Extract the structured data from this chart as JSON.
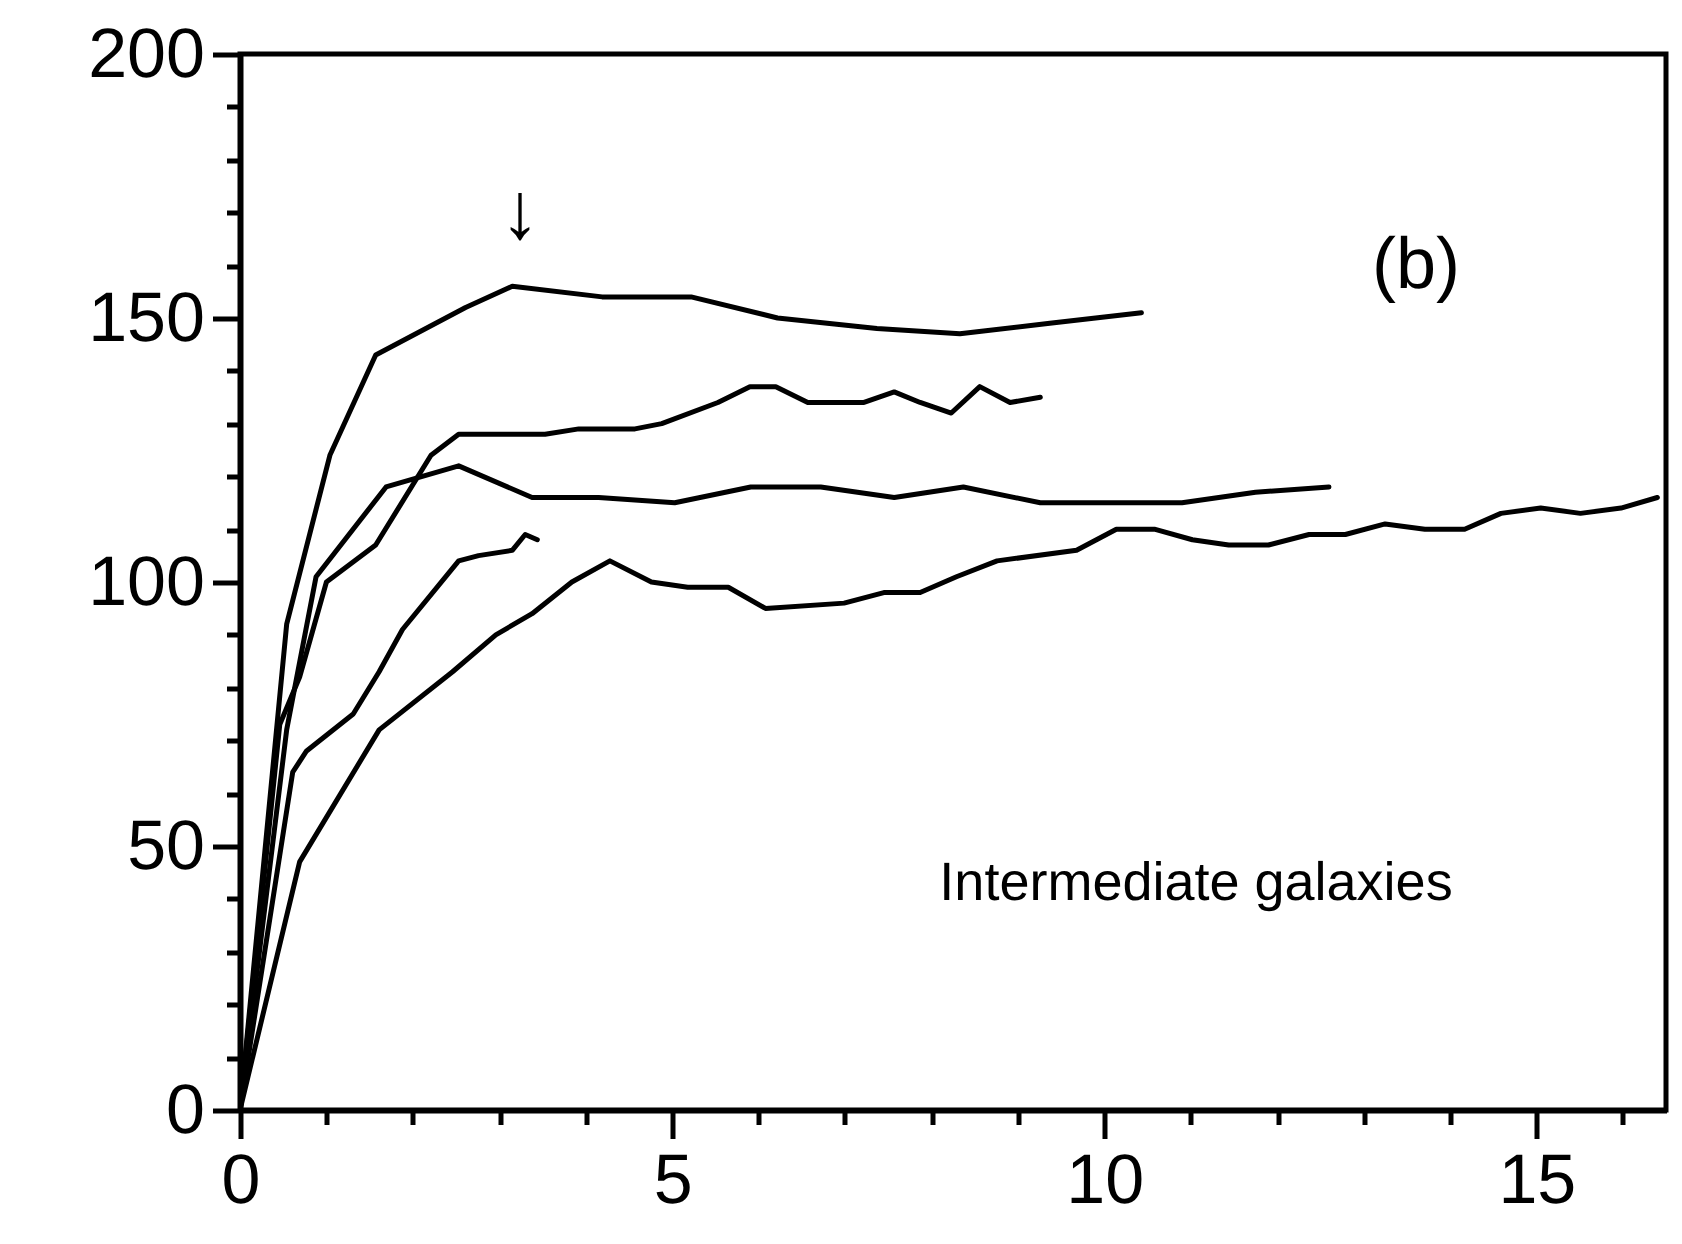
{
  "chart_data": {
    "type": "line",
    "xlim": [
      0,
      16.5
    ],
    "ylim": [
      0,
      200
    ],
    "xticks": [
      0,
      {
        "value": 1,
        "label": null
      },
      {
        "value": 2,
        "label": null
      },
      {
        "value": 3,
        "label": null
      },
      {
        "value": 4,
        "label": null
      },
      5,
      {
        "value": 6,
        "label": null
      },
      {
        "value": 7,
        "label": null
      },
      {
        "value": 8,
        "label": null
      },
      {
        "value": 9,
        "label": null
      },
      10,
      {
        "value": 11,
        "label": null
      },
      {
        "value": 12,
        "label": null
      },
      {
        "value": 13,
        "label": null
      },
      {
        "value": 14,
        "label": null
      },
      15,
      {
        "value": 16,
        "label": null
      }
    ],
    "yticks": [
      0,
      {
        "value": 10,
        "label": null
      },
      {
        "value": 20,
        "label": null
      },
      {
        "value": 30,
        "label": null
      },
      {
        "value": 40,
        "label": null
      },
      50,
      {
        "value": 60,
        "label": null
      },
      {
        "value": 70,
        "label": null
      },
      {
        "value": 80,
        "label": null
      },
      {
        "value": 90,
        "label": null
      },
      100,
      {
        "value": 110,
        "label": null
      },
      {
        "value": 120,
        "label": null
      },
      {
        "value": 130,
        "label": null
      },
      {
        "value": 140,
        "label": null
      },
      150,
      {
        "value": 160,
        "label": null
      },
      {
        "value": 170,
        "label": null
      },
      {
        "value": 180,
        "label": null
      },
      {
        "value": 190,
        "label": null
      },
      200
    ],
    "marker": "none",
    "line_style": "solid",
    "series": [
      {
        "color": "#000000",
        "x": [
          0,
          0.54,
          1.04,
          1.57,
          2.61,
          3.15,
          4.19,
          5.22,
          6.22,
          7.37,
          8.33,
          9.37,
          10.43
        ],
        "values": [
          0,
          92,
          124,
          143,
          152,
          156,
          154,
          154,
          150,
          148,
          147,
          149,
          151
        ]
      },
      {
        "color": "#000000",
        "x": [
          0,
          0.46,
          0.69,
          1.0,
          1.57,
          2.21,
          2.53,
          3.53,
          3.92,
          4.57,
          4.88,
          5.53,
          5.9,
          6.2,
          6.57,
          7.22,
          7.57,
          7.87,
          8.23,
          8.56,
          8.91,
          9.26
        ],
        "values": [
          0,
          73,
          82,
          100,
          107,
          124,
          128,
          128,
          129,
          129,
          130,
          134,
          137,
          137,
          134,
          134,
          136,
          134,
          132,
          137,
          134,
          135
        ]
      },
      {
        "color": "#000000",
        "x": [
          0,
          0.54,
          0.88,
          1.69,
          2.53,
          3.38,
          4.15,
          5.03,
          5.91,
          6.72,
          7.57,
          8.37,
          9.26,
          10.9,
          11.75,
          12.6
        ],
        "values": [
          0,
          72,
          101,
          118,
          122,
          116,
          116,
          115,
          118,
          118,
          116,
          118,
          115,
          115,
          117,
          118
        ]
      },
      {
        "color": "#000000",
        "x": [
          0,
          0.61,
          0.77,
          1.31,
          1.61,
          1.88,
          2.53,
          2.76,
          3.15,
          3.3,
          3.44
        ],
        "values": [
          0,
          64,
          68,
          75,
          83,
          91,
          104,
          105,
          106,
          109,
          108
        ]
      },
      {
        "color": "#000000",
        "x": [
          0,
          0.69,
          1.61,
          2.46,
          2.96,
          3.38,
          3.84,
          4.28,
          4.76,
          5.18,
          5.65,
          6.08,
          6.99,
          7.45,
          7.87,
          8.29,
          8.76,
          9.68,
          10.14,
          10.58,
          11.02,
          11.44,
          11.9,
          12.37,
          12.79,
          13.25,
          13.71,
          14.17,
          14.59,
          15.05,
          15.51,
          15.98,
          16.4
        ],
        "values": [
          0,
          47,
          72,
          83,
          90,
          94,
          100,
          104,
          100,
          99,
          99,
          95,
          96,
          98,
          98,
          101,
          104,
          106,
          110,
          110,
          108,
          107,
          107,
          109,
          109,
          111,
          110,
          110,
          113,
          114,
          113,
          114,
          116
        ]
      }
    ],
    "annotations": [
      "↓",
      "(b)",
      "Intermediate galaxies"
    ]
  }
}
